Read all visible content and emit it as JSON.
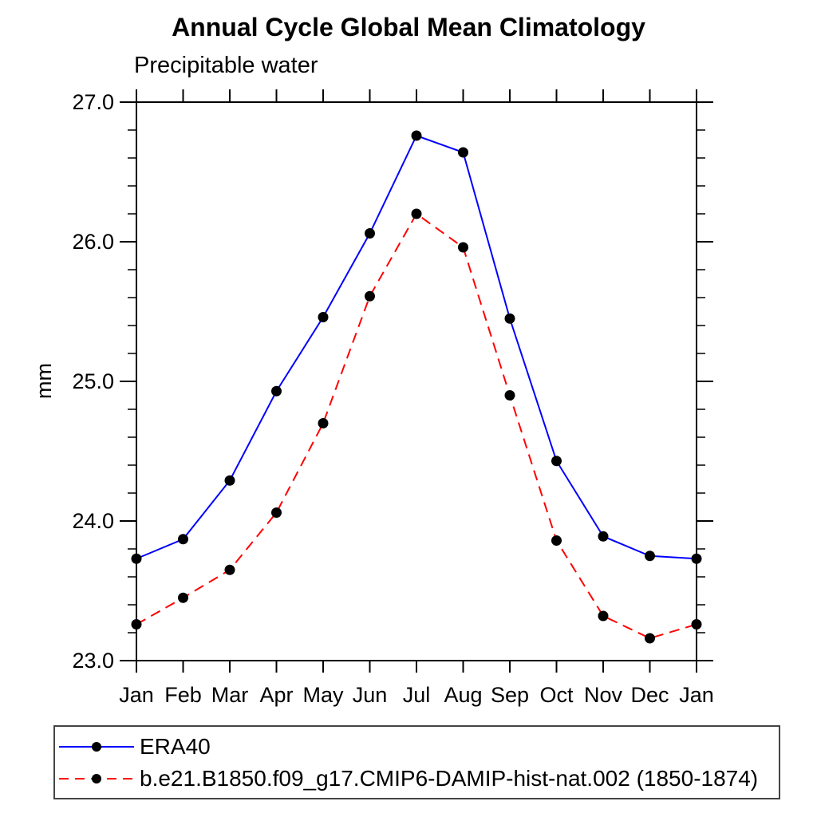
{
  "figure": {
    "background": "#ffffff",
    "axis_color": "#000000"
  },
  "chart_data": {
    "type": "line",
    "title": "Annual Cycle Global Mean Climatology",
    "subtitle": "Precipitable water",
    "xlabel": "",
    "ylabel": "mm",
    "categories": [
      "Jan",
      "Feb",
      "Mar",
      "Apr",
      "May",
      "Jun",
      "Jul",
      "Aug",
      "Sep",
      "Oct",
      "Nov",
      "Dec",
      "Jan"
    ],
    "ylim": [
      23.0,
      27.0
    ],
    "ytick_values": [
      23.0,
      24.0,
      25.0,
      26.0,
      27.0
    ],
    "ytick_labels": [
      "23.0",
      "24.0",
      "25.0",
      "26.0",
      "27.0"
    ],
    "ytick_minor_step": 0.2,
    "grid": false,
    "legend_position": "bottom-box",
    "series": [
      {
        "name": "ERA40",
        "color": "#0000ff",
        "line_style": "solid",
        "marker": "filled-circle",
        "marker_color": "#000000",
        "values": [
          23.73,
          23.87,
          24.29,
          24.93,
          25.46,
          26.06,
          26.76,
          26.64,
          25.45,
          24.43,
          23.89,
          23.75,
          23.73
        ]
      },
      {
        "name": "b.e21.B1850.f09_g17.CMIP6-DAMIP-hist-nat.002 (1850-1874)",
        "color": "#ff0000",
        "line_style": "dashed",
        "marker": "filled-circle",
        "marker_color": "#000000",
        "values": [
          23.26,
          23.45,
          23.65,
          24.06,
          24.7,
          25.61,
          26.2,
          25.96,
          24.9,
          23.86,
          23.32,
          23.16,
          23.26
        ]
      }
    ]
  }
}
